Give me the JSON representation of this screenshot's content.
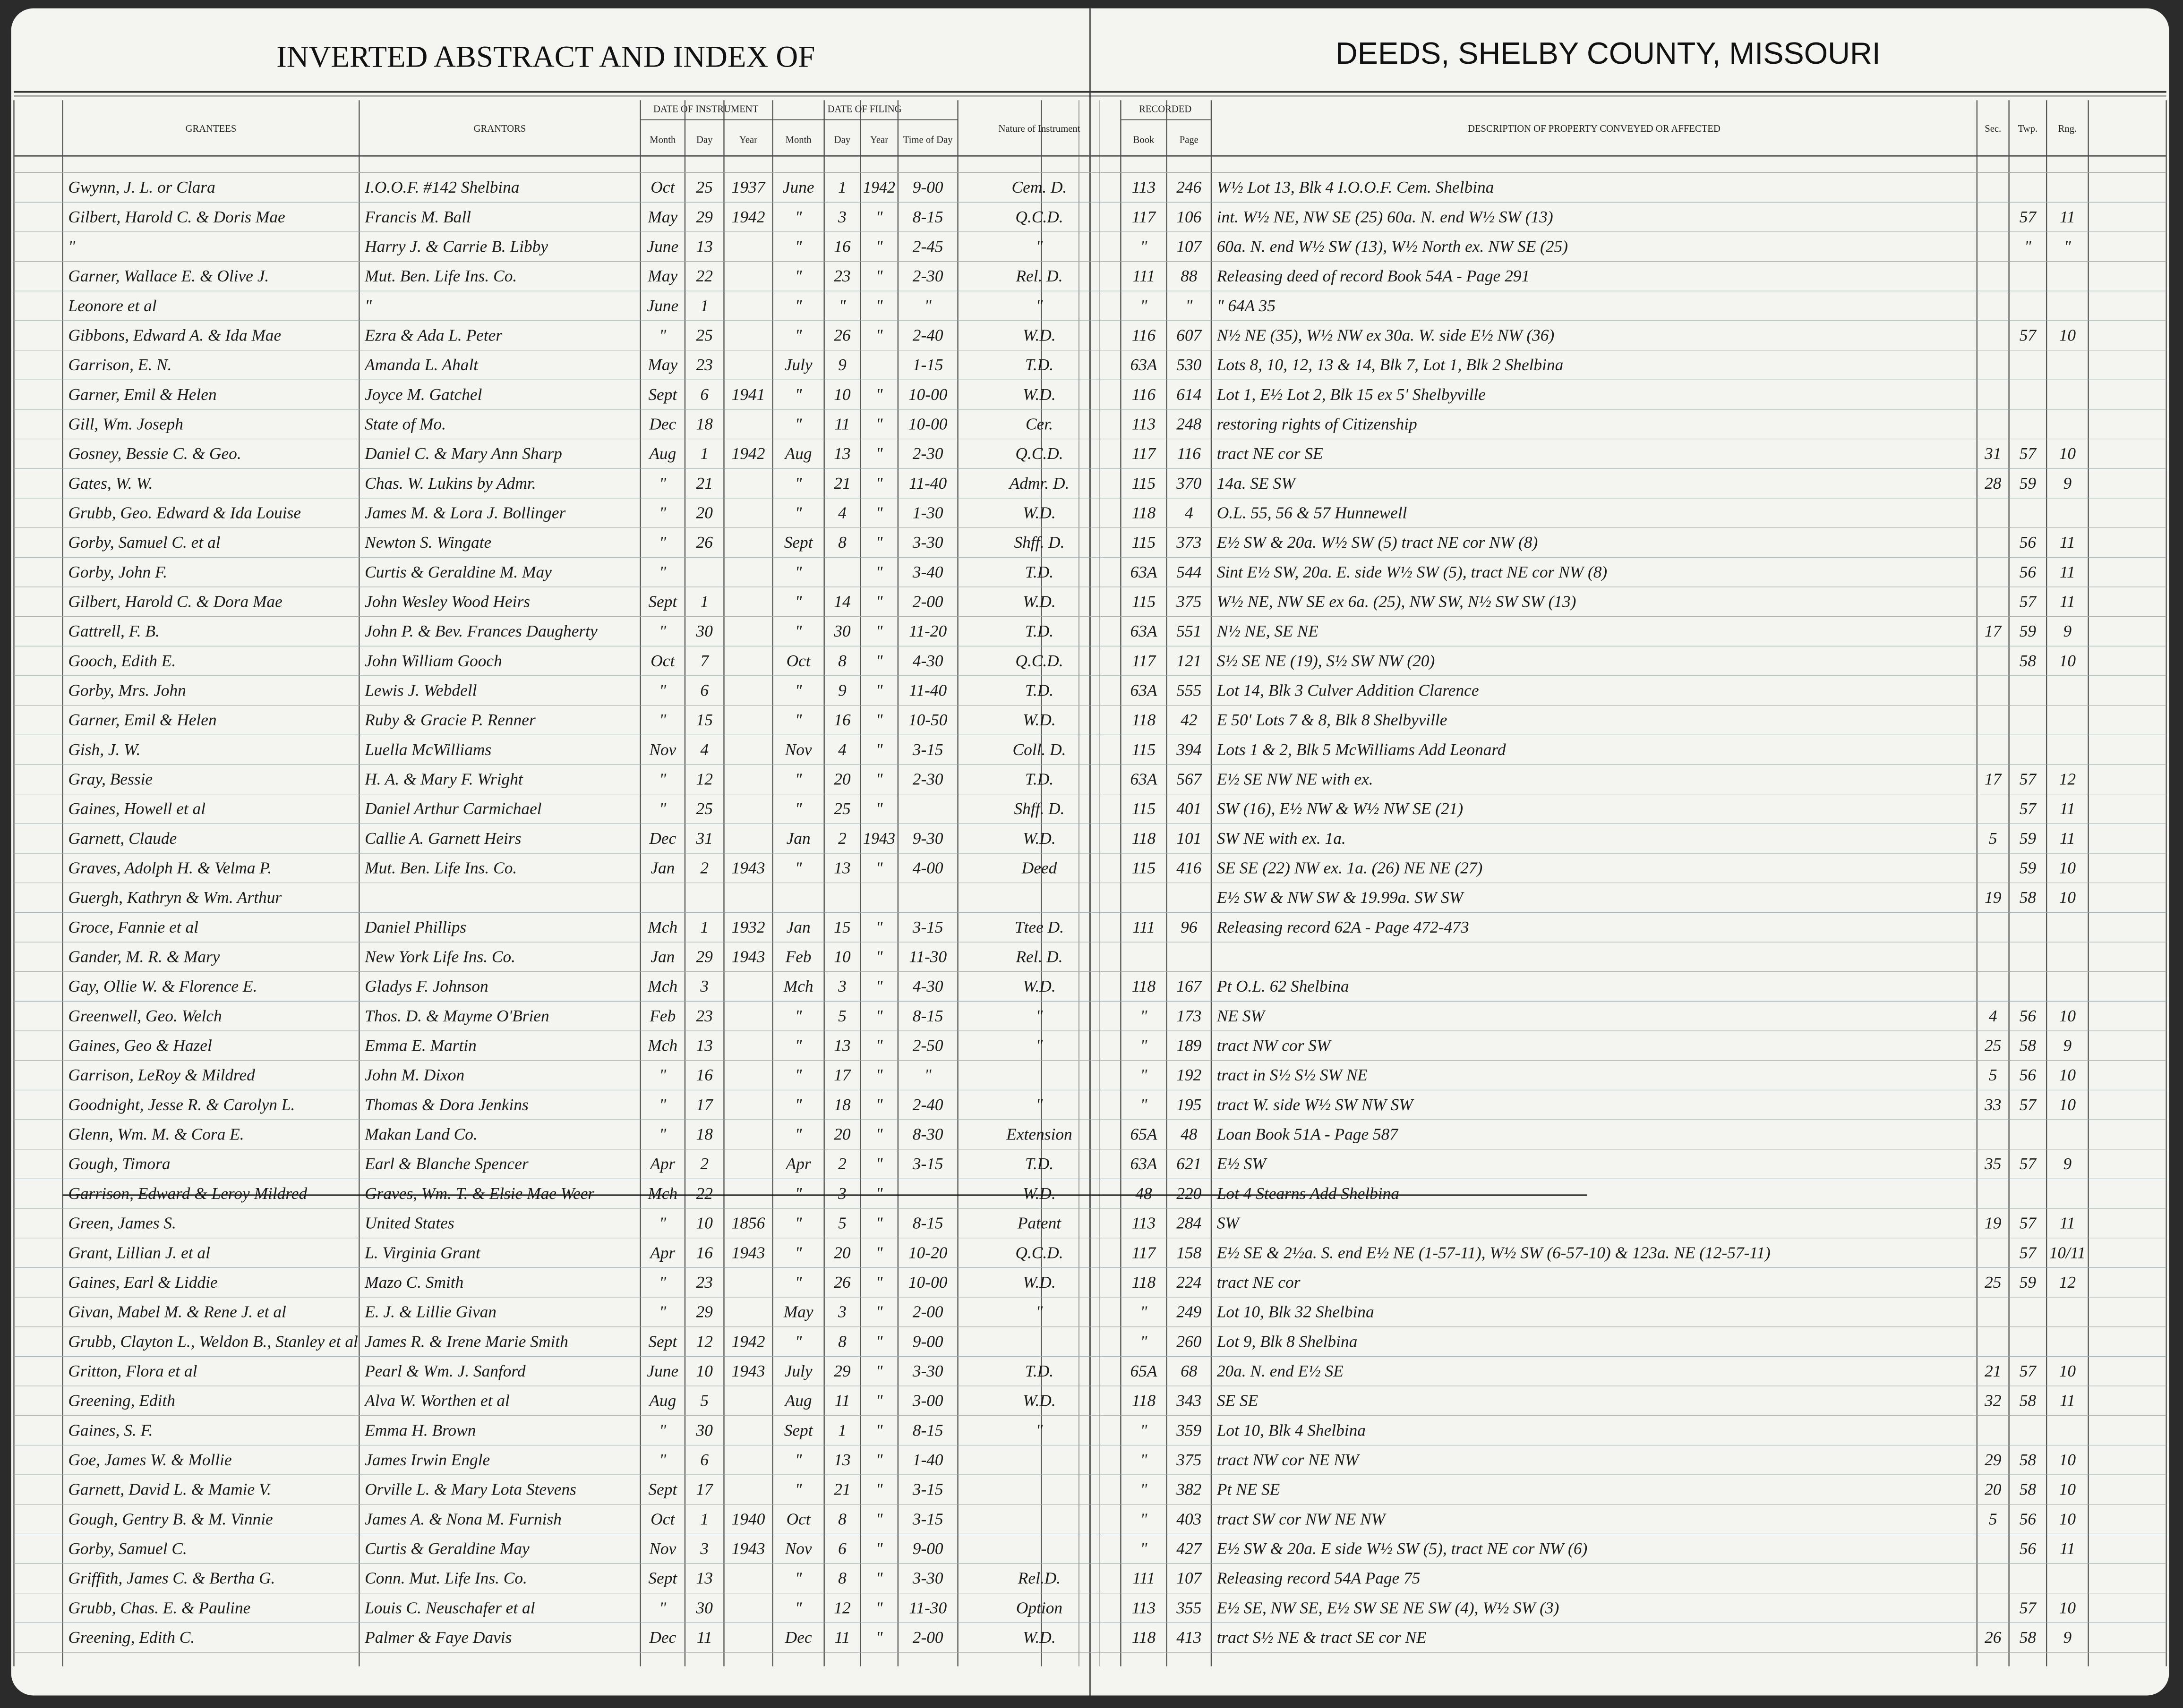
{
  "header": {
    "left_title": "INVERTED ABSTRACT AND INDEX OF",
    "right_title": "DEEDS, SHELBY COUNTY, MISSOURI"
  },
  "group_headers": [
    "DATE OF INSTRUMENT",
    "DATE OF FILING",
    "RECORDED"
  ],
  "column_headers": [
    "GRANTEES",
    "GRANTORS",
    "Month",
    "Day",
    "Year",
    "Month",
    "Day",
    "Year",
    "Time of Day",
    "Nature of Instrument",
    "Book",
    "Page",
    "DESCRIPTION OF PROPERTY CONVEYED OR AFFECTED",
    "Sec.",
    "Twp.",
    "Rng."
  ],
  "rows": [
    [
      "Gwynn, J. L. or Clara",
      "I.O.O.F. #142 Shelbina",
      "Oct",
      "25",
      "1937",
      "June",
      "1",
      "1942",
      "9-00",
      "Cem. D.",
      "113",
      "246",
      "W½ Lot 13, Blk 4 I.O.O.F. Cem. Shelbina",
      null,
      null,
      null
    ],
    [
      "Gilbert, Harold C. & Doris Mae",
      "Francis M. Ball",
      "May",
      "29",
      "1942",
      "\"",
      "3",
      "\"",
      "8-15",
      "Q.C.D.",
      "117",
      "106",
      "int. W½ NE, NW SE (25) 60a. N. end W½ SW (13)",
      null,
      "57",
      "11"
    ],
    [
      "\"",
      "Harry J. & Carrie B. Libby",
      "June",
      "13",
      null,
      "\"",
      "16",
      "\"",
      "2-45",
      "\"",
      "\"",
      "107",
      "60a. N. end W½ SW (13), W½ North ex. NW SE (25)",
      null,
      "\"",
      "\""
    ],
    [
      "Garner, Wallace E. & Olive J.",
      "Mut. Ben. Life Ins. Co.",
      "May",
      "22",
      null,
      "\"",
      "23",
      "\"",
      "2-30",
      "Rel. D.",
      "111",
      "88",
      "Releasing deed of record Book 54A - Page 291",
      null,
      null,
      null
    ],
    [
      "Leonore et al",
      "\"",
      "June",
      "1",
      null,
      "\"",
      "\"",
      "\"",
      "\"",
      "\"",
      "\"",
      "\"",
      "\" 64A 35",
      null,
      null,
      null
    ],
    [
      "Gibbons, Edward A. & Ida Mae",
      "Ezra & Ada L. Peter",
      "\"",
      "25",
      null,
      "\"",
      "26",
      "\"",
      "2-40",
      "W.D.",
      "116",
      "607",
      "N½ NE (35), W½ NW ex 30a. W. side E½ NW (36)",
      null,
      "57",
      "10"
    ],
    [
      "Garrison, E. N.",
      "Amanda L. Ahalt",
      "May",
      "23",
      null,
      "July",
      "9",
      null,
      "1-15",
      "T.D.",
      "63A",
      "530",
      "Lots 8, 10, 12, 13 & 14, Blk 7, Lot 1, Blk 2 Shelbina",
      null,
      null,
      null
    ],
    [
      "Garner, Emil & Helen",
      "Joyce M. Gatchel",
      "Sept",
      "6",
      "1941",
      "\"",
      "10",
      "\"",
      "10-00",
      "W.D.",
      "116",
      "614",
      "Lot 1, E½ Lot 2, Blk 15 ex 5' Shelbyville",
      null,
      null,
      null
    ],
    [
      "Gill, Wm. Joseph",
      "State of Mo.",
      "Dec",
      "18",
      null,
      "\"",
      "11",
      "\"",
      "10-00",
      "Cer.",
      "113",
      "248",
      "restoring rights of Citizenship",
      null,
      null,
      null
    ],
    [
      "Gosney, Bessie C. & Geo.",
      "Daniel C. & Mary Ann Sharp",
      "Aug",
      "1",
      "1942",
      "Aug",
      "13",
      "\"",
      "2-30",
      "Q.C.D.",
      "117",
      "116",
      "tract NE cor SE",
      "31",
      "57",
      "10"
    ],
    [
      "Gates, W. W.",
      "Chas. W. Lukins by Admr.",
      "\"",
      "21",
      null,
      "\"",
      "21",
      "\"",
      "11-40",
      "Admr. D.",
      "115",
      "370",
      "14a. SE SW",
      "28",
      "59",
      "9"
    ],
    [
      "Grubb, Geo. Edward & Ida Louise",
      "James M. & Lora J. Bollinger",
      "\"",
      "20",
      null,
      "\"",
      "4",
      "\"",
      "1-30",
      "W.D.",
      "118",
      "4",
      "O.L. 55, 56 & 57 Hunnewell",
      null,
      null,
      null
    ],
    [
      "Gorby, Samuel C. et al",
      "Newton S. Wingate",
      "\"",
      "26",
      null,
      "Sept",
      "8",
      "\"",
      "3-30",
      "Shff. D.",
      "115",
      "373",
      "E½ SW & 20a. W½ SW (5) tract NE cor NW (8)",
      null,
      "56",
      "11"
    ],
    [
      "Gorby, John F.",
      "Curtis & Geraldine M. May",
      "\"",
      null,
      null,
      "\"",
      null,
      "\"",
      "3-40",
      "T.D.",
      "63A",
      "544",
      "Sint E½ SW, 20a. E. side W½ SW (5), tract NE cor NW (8)",
      null,
      "56",
      "11"
    ],
    [
      "Gilbert, Harold C. & Dora Mae",
      "John Wesley Wood Heirs",
      "Sept",
      "1",
      null,
      "\"",
      "14",
      "\"",
      "2-00",
      "W.D.",
      "115",
      "375",
      "W½ NE, NW SE ex 6a. (25), NW SW, N½ SW SW (13)",
      null,
      "57",
      "11"
    ],
    [
      "Gattrell, F. B.",
      "John P. & Bev. Frances Daugherty",
      "\"",
      "30",
      null,
      "\"",
      "30",
      "\"",
      "11-20",
      "T.D.",
      "63A",
      "551",
      "N½ NE, SE NE",
      "17",
      "59",
      "9"
    ],
    [
      "Gooch, Edith E.",
      "John William Gooch",
      "Oct",
      "7",
      null,
      "Oct",
      "8",
      "\"",
      "4-30",
      "Q.C.D.",
      "117",
      "121",
      "S½ SE NE (19), S½ SW NW (20)",
      null,
      "58",
      "10"
    ],
    [
      "Gorby, Mrs. John",
      "Lewis J. Webdell",
      "\"",
      "6",
      null,
      "\"",
      "9",
      "\"",
      "11-40",
      "T.D.",
      "63A",
      "555",
      "Lot 14, Blk 3 Culver Addition Clarence",
      null,
      null,
      null
    ],
    [
      "Garner, Emil & Helen",
      "Ruby & Gracie P. Renner",
      "\"",
      "15",
      null,
      "\"",
      "16",
      "\"",
      "10-50",
      "W.D.",
      "118",
      "42",
      "E 50' Lots 7 & 8, Blk 8 Shelbyville",
      null,
      null,
      null
    ],
    [
      "Gish, J. W.",
      "Luella McWilliams",
      "Nov",
      "4",
      null,
      "Nov",
      "4",
      "\"",
      "3-15",
      "Coll. D.",
      "115",
      "394",
      "Lots 1 & 2, Blk 5 McWilliams Add Leonard",
      null,
      null,
      null
    ],
    [
      "Gray, Bessie",
      "H. A. & Mary F. Wright",
      "\"",
      "12",
      null,
      "\"",
      "20",
      "\"",
      "2-30",
      "T.D.",
      "63A",
      "567",
      "E½ SE NW NE with ex.",
      "17",
      "57",
      "12"
    ],
    [
      "Gaines, Howell et al",
      "Daniel Arthur Carmichael",
      "\"",
      "25",
      null,
      "\"",
      "25",
      "\"",
      null,
      "Shff. D.",
      "115",
      "401",
      "SW (16), E½ NW & W½ NW SE (21)",
      null,
      "57",
      "11"
    ],
    [
      "Garnett, Claude",
      "Callie A. Garnett Heirs",
      "Dec",
      "31",
      null,
      "Jan",
      "2",
      "1943",
      "9-30",
      "W.D.",
      "118",
      "101",
      "SW NE with ex. 1a.",
      "5",
      "59",
      "11"
    ],
    [
      "Graves, Adolph H. & Velma P.",
      "Mut. Ben. Life Ins. Co.",
      "Jan",
      "2",
      "1943",
      "\"",
      "13",
      "\"",
      "4-00",
      "Deed",
      "115",
      "416",
      "SE SE (22) NW ex. 1a. (26) NE NE (27)",
      null,
      "59",
      "10"
    ],
    [
      "Guergh, Kathryn & Wm. Arthur",
      null,
      null,
      null,
      null,
      null,
      null,
      null,
      null,
      null,
      null,
      null,
      "E½ SW & NW SW & 19.99a. SW SW",
      "19",
      "58",
      "10"
    ],
    [
      "Groce, Fannie et al",
      "Daniel Phillips",
      "Mch",
      "1",
      "1932",
      "Jan",
      "15",
      "\"",
      "3-15",
      "Ttee D.",
      "111",
      "96",
      "Releasing record 62A - Page 472-473",
      null,
      null,
      null
    ],
    [
      "Gander, M. R. & Mary",
      "New York Life Ins. Co.",
      "Jan",
      "29",
      "1943",
      "Feb",
      "10",
      "\"",
      "11-30",
      "Rel. D.",
      null,
      null,
      null,
      null,
      null,
      null
    ],
    [
      "Gay, Ollie W. & Florence E.",
      "Gladys F. Johnson",
      "Mch",
      "3",
      null,
      "Mch",
      "3",
      "\"",
      "4-30",
      "W.D.",
      "118",
      "167",
      "Pt O.L. 62 Shelbina",
      null,
      null,
      null
    ],
    [
      "Greenwell, Geo. Welch",
      "Thos. D. & Mayme O'Brien",
      "Feb",
      "23",
      null,
      "\"",
      "5",
      "\"",
      "8-15",
      "\"",
      "\"",
      "173",
      "NE SW",
      "4",
      "56",
      "10"
    ],
    [
      "Gaines, Geo & Hazel",
      "Emma E. Martin",
      "Mch",
      "13",
      null,
      "\"",
      "13",
      "\"",
      "2-50",
      "\"",
      "\"",
      "189",
      "tract NW cor SW",
      "25",
      "58",
      "9"
    ],
    [
      "Garrison, LeRoy & Mildred",
      "John M. Dixon",
      "\"",
      "16",
      null,
      "\"",
      "17",
      "\"",
      "\"",
      null,
      "\"",
      "192",
      "tract in S½ S½ SW NE",
      "5",
      "56",
      "10"
    ],
    [
      "Goodnight, Jesse R. & Carolyn L.",
      "Thomas & Dora Jenkins",
      "\"",
      "17",
      null,
      "\"",
      "18",
      "\"",
      "2-40",
      "\"",
      "\"",
      "195",
      "tract W. side W½ SW NW SW",
      "33",
      "57",
      "10"
    ],
    [
      "Glenn, Wm. M. & Cora E.",
      "Makan Land Co.",
      "\"",
      "18",
      null,
      "\"",
      "20",
      "\"",
      "8-30",
      "Extension",
      "65A",
      "48",
      "Loan Book 51A - Page 587",
      null,
      null,
      null
    ],
    [
      "Gough, Timora",
      "Earl & Blanche Spencer",
      "Apr",
      "2",
      null,
      "Apr",
      "2",
      "\"",
      "3-15",
      "T.D.",
      "63A",
      "621",
      "E½ SW",
      "35",
      "57",
      "9"
    ],
    [
      "Garrison, Edward & Leroy Mildred",
      "Graves, Wm. T. & Elsie Mae Weer",
      "Mch",
      "22",
      null,
      "\"",
      "3",
      "\"",
      null,
      "W.D.",
      "48",
      "220",
      "Lot 4 Stearns Add Shelbina",
      null,
      null,
      null
    ],
    [
      "Green, James S.",
      "United States",
      "\"",
      "10",
      "1856",
      "\"",
      "5",
      "\"",
      "8-15",
      "Patent",
      "113",
      "284",
      "SW",
      "19",
      "57",
      "11"
    ],
    [
      "Grant, Lillian J. et al",
      "L. Virginia Grant",
      "Apr",
      "16",
      "1943",
      "\"",
      "20",
      "\"",
      "10-20",
      "Q.C.D.",
      "117",
      "158",
      "E½ SE & 2½a. S. end E½ NE (1-57-11), W½ SW (6-57-10) & 123a. NE (12-57-11)",
      null,
      "57",
      "10/11"
    ],
    [
      "Gaines, Earl & Liddie",
      "Mazo C. Smith",
      "\"",
      "23",
      null,
      "\"",
      "26",
      "\"",
      "10-00",
      "W.D.",
      "118",
      "224",
      "tract NE cor",
      "25",
      "59",
      "12"
    ],
    [
      "Givan, Mabel M. & Rene J. et al",
      "E. J. & Lillie Givan",
      "\"",
      "29",
      null,
      "May",
      "3",
      "\"",
      "2-00",
      "\"",
      "\"",
      "249",
      "Lot 10, Blk 32 Shelbina",
      null,
      null,
      null
    ],
    [
      "Grubb, Clayton L., Weldon B., Stanley et al",
      "James R. & Irene Marie Smith",
      "Sept",
      "12",
      "1942",
      "\"",
      "8",
      "\"",
      "9-00",
      null,
      "\"",
      "260",
      "Lot 9, Blk 8 Shelbina",
      null,
      null,
      null
    ],
    [
      "Gritton, Flora et al",
      "Pearl & Wm. J. Sanford",
      "June",
      "10",
      "1943",
      "July",
      "29",
      "\"",
      "3-30",
      "T.D.",
      "65A",
      "68",
      "20a. N. end E½ SE",
      "21",
      "57",
      "10"
    ],
    [
      "Greening, Edith",
      "Alva W. Worthen et al",
      "Aug",
      "5",
      null,
      "Aug",
      "11",
      "\"",
      "3-00",
      "W.D.",
      "118",
      "343",
      "SE SE",
      "32",
      "58",
      "11"
    ],
    [
      "Gaines, S. F.",
      "Emma H. Brown",
      "\"",
      "30",
      null,
      "Sept",
      "1",
      "\"",
      "8-15",
      "\"",
      "\"",
      "359",
      "Lot 10, Blk 4 Shelbina",
      null,
      null,
      null
    ],
    [
      "Goe, James W. & Mollie",
      "James Irwin Engle",
      "\"",
      "6",
      null,
      "\"",
      "13",
      "\"",
      "1-40",
      null,
      "\"",
      "375",
      "tract NW cor NE NW",
      "29",
      "58",
      "10"
    ],
    [
      "Garnett, David L. & Mamie V.",
      "Orville L. & Mary Lota Stevens",
      "Sept",
      "17",
      null,
      "\"",
      "21",
      "\"",
      "3-15",
      null,
      "\"",
      "382",
      "Pt NE SE",
      "20",
      "58",
      "10"
    ],
    [
      "Gough, Gentry B. & M. Vinnie",
      "James A. & Nona M. Furnish",
      "Oct",
      "1",
      "1940",
      "Oct",
      "8",
      "\"",
      "3-15",
      null,
      "\"",
      "403",
      "tract SW cor NW NE NW",
      "5",
      "56",
      "10"
    ],
    [
      "Gorby, Samuel C.",
      "Curtis & Geraldine May",
      "Nov",
      "3",
      "1943",
      "Nov",
      "6",
      "\"",
      "9-00",
      null,
      "\"",
      "427",
      "E½ SW & 20a. E side W½ SW (5), tract NE cor NW (6)",
      null,
      "56",
      "11"
    ],
    [
      "Griffith, James C. & Bertha G.",
      "Conn. Mut. Life Ins. Co.",
      "Sept",
      "13",
      null,
      "\"",
      "8",
      "\"",
      "3-30",
      "Rel.D.",
      "111",
      "107",
      "Releasing record 54A Page 75",
      null,
      null,
      null
    ],
    [
      "Grubb, Chas. E. & Pauline",
      "Louis C. Neuschafer et al",
      "\"",
      "30",
      null,
      "\"",
      "12",
      "\"",
      "11-30",
      "Option",
      "113",
      "355",
      "E½ SE, NW SE, E½ SW SE NE SW (4), W½ SW (3)",
      null,
      "57",
      "10"
    ],
    [
      "Greening, Edith C.",
      "Palmer & Faye Davis",
      "Dec",
      "11",
      null,
      "Dec",
      "11",
      "\"",
      "2-00",
      "W.D.",
      "118",
      "413",
      "tract S½ NE & tract SE cor NE",
      "26",
      "58",
      "9"
    ]
  ]
}
